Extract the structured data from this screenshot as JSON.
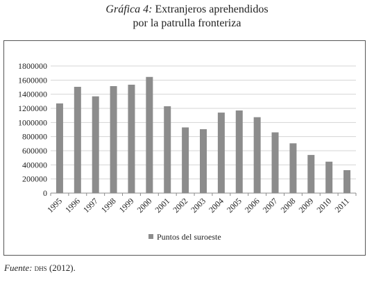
{
  "figure": {
    "title_lead": "Gráfica 4:",
    "title_rest": " Extranjeros aprehendidos",
    "title_line2": "por la patrulla fronteriza"
  },
  "chart_data": {
    "type": "bar",
    "categories": [
      "1995",
      "1996",
      "1997",
      "1998",
      "1999",
      "2000",
      "2001",
      "2002",
      "2003",
      "2004",
      "2005",
      "2006",
      "2007",
      "2008",
      "2009",
      "2010",
      "2011"
    ],
    "series": [
      {
        "name": "Puntos del suroeste",
        "values": [
          1270000,
          1505000,
          1370000,
          1515000,
          1535000,
          1645000,
          1230000,
          930000,
          905000,
          1140000,
          1170000,
          1075000,
          860000,
          705000,
          540000,
          445000,
          325000
        ]
      }
    ],
    "y_ticks": [
      "0",
      "200000",
      "400000",
      "600000",
      "800000",
      "1000000",
      "1200000",
      "1400000",
      "1600000",
      "1800000"
    ],
    "ylim": [
      0,
      1800000
    ],
    "xlabel": "",
    "ylabel": "",
    "grid": true,
    "legend_position": "bottom",
    "bar_color": "#8c8c8c",
    "grid_color": "#d4d4d4"
  },
  "source": {
    "label": "Fuente:",
    "org": "DHS",
    "year": "(2012)."
  }
}
